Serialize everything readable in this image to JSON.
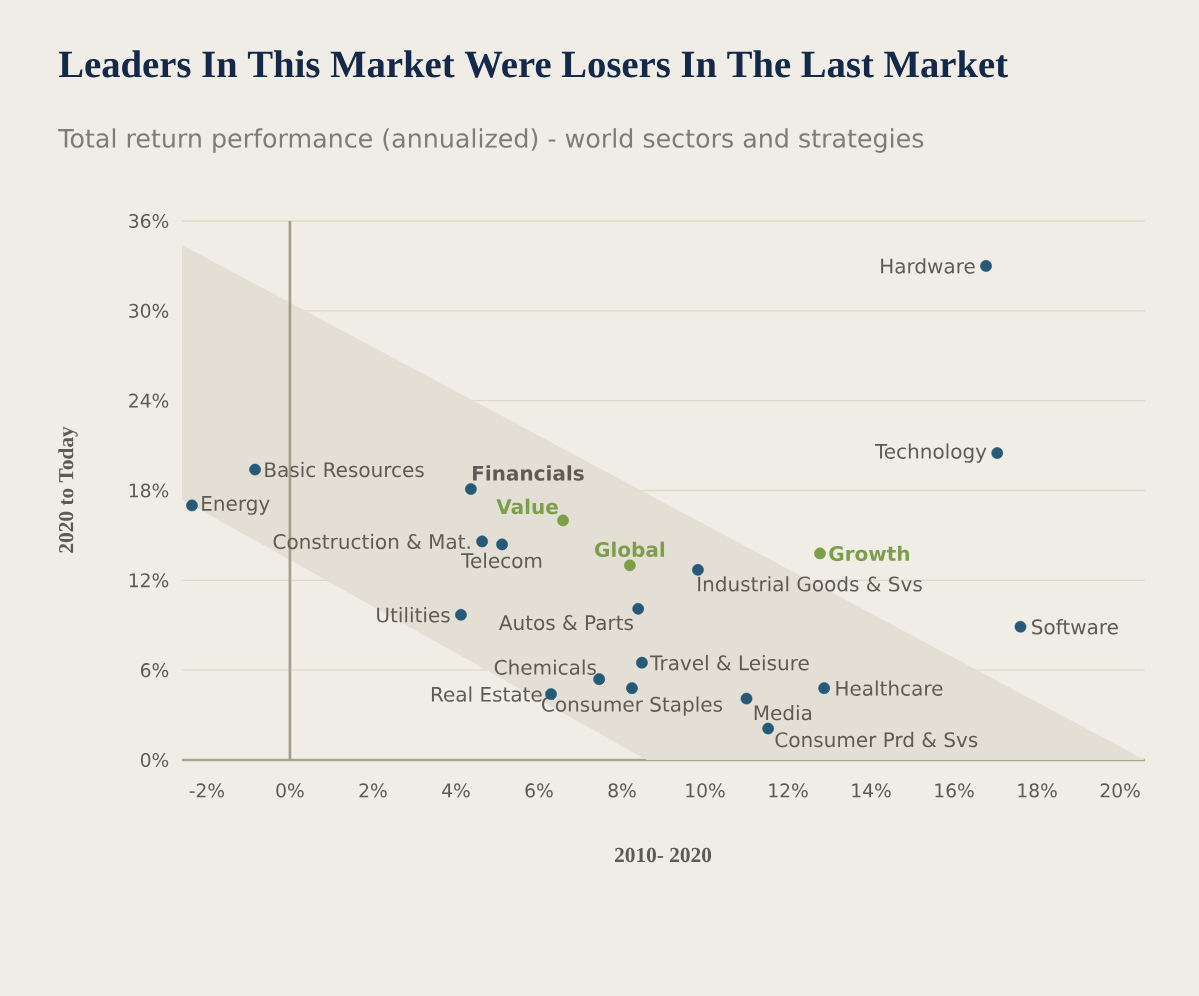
{
  "chart_data": {
    "type": "scatter",
    "title": "Leaders In This Market Were Losers In The Last Market",
    "subtitle": "Total return performance (annualized) - world sectors and strategies",
    "xlabel": "2010- 2020",
    "ylabel": "2020 to Today",
    "series": [
      {
        "x": [
          16.77,
          17.04,
          17.6,
          12.87,
          11.52,
          11.0,
          12.77,
          9.83,
          8.19,
          6.58,
          8.39,
          8.48,
          8.24,
          7.45,
          6.29,
          5.11,
          4.63,
          4.36,
          4.12,
          -0.84,
          -2.36
        ],
        "values": [
          33.0,
          20.5,
          8.9,
          4.8,
          2.1,
          4.1,
          13.8,
          12.7,
          13.0,
          16.0,
          10.1,
          6.5,
          4.8,
          5.4,
          4.4,
          14.4,
          14.6,
          18.1,
          9.7,
          19.4,
          17.0
        ],
        "colors": [
          "#265a78",
          "#265a78",
          "#265a78",
          "#265a78",
          "#265a78",
          "#265a78",
          "#7d9e4a",
          "#265a78",
          "#7d9e4a",
          "#7d9e4a",
          "#265a78",
          "#265a78",
          "#265a78",
          "#265a78",
          "#265a78",
          "#265a78",
          "#265a78",
          "#265a78",
          "#265a78",
          "#265a78",
          "#265a78"
        ]
      }
    ],
    "annotations": [
      {
        "text": "Hardware",
        "x": 16.77,
        "y": 33.0
      },
      {
        "text": "Technology",
        "x": 17.04,
        "y": 20.5
      },
      {
        "text": "Software",
        "x": 17.6,
        "y": 8.9
      },
      {
        "text": "Healthcare",
        "x": 12.87,
        "y": 4.8
      },
      {
        "text": "Consumer Prd & Svs",
        "x": 11.52,
        "y": 2.1
      },
      {
        "text": "Media",
        "x": 11.0,
        "y": 4.1
      },
      {
        "text": "**Growth**",
        "x": 12.77,
        "y": 13.8
      },
      {
        "text": "Industrial Goods & Svs",
        "x": 9.83,
        "y": 12.7
      },
      {
        "text": "**Global**",
        "x": 8.19,
        "y": 13.0
      },
      {
        "text": "**Value**",
        "x": 6.58,
        "y": 16.0
      },
      {
        "text": "Autos & Parts",
        "x": 8.39,
        "y": 10.1
      },
      {
        "text": "Travel & Leisure",
        "x": 8.48,
        "y": 6.5
      },
      {
        "text": "Consumer Staples",
        "x": 8.24,
        "y": 4.8
      },
      {
        "text": "Chemicals",
        "x": 7.45,
        "y": 5.4
      },
      {
        "text": "Real Estate",
        "x": 6.29,
        "y": 4.4
      },
      {
        "text": "Telecom",
        "x": 5.11,
        "y": 14.4
      },
      {
        "text": "Construction & Mat.",
        "x": 4.63,
        "y": 14.6
      },
      {
        "text": "**Financials**",
        "x": 4.36,
        "y": 18.1
      },
      {
        "text": "Utilities",
        "x": 4.12,
        "y": 9.7
      },
      {
        "text": "Basic Resources",
        "x": -0.84,
        "y": 19.4
      },
      {
        "text": "Energy",
        "x": -2.36,
        "y": 17.0
      }
    ],
    "xlim": [
      -2.6,
      20.6
    ],
    "ylim": [
      0,
      36
    ],
    "xticks": [
      {
        "value": -2,
        "label": "-2%"
      },
      {
        "value": 0,
        "label": "0%"
      },
      {
        "value": 2,
        "label": "2%"
      },
      {
        "value": 4,
        "label": "4%"
      },
      {
        "value": 6,
        "label": "6%"
      },
      {
        "value": 8,
        "label": "8%"
      },
      {
        "value": 10,
        "label": "10%"
      },
      {
        "value": 12,
        "label": "12%"
      },
      {
        "value": 14,
        "label": "14%"
      },
      {
        "value": 16,
        "label": "16%"
      },
      {
        "value": 18,
        "label": "18%"
      },
      {
        "value": 20,
        "label": "20%"
      }
    ],
    "yticks": [
      {
        "value": 0,
        "label": "0%"
      },
      {
        "value": 6,
        "label": "6%"
      },
      {
        "value": 12,
        "label": "12%"
      },
      {
        "value": 18,
        "label": "18%"
      },
      {
        "value": 24,
        "label": "24%"
      },
      {
        "value": 30,
        "label": "30%"
      },
      {
        "value": 36,
        "label": "36%"
      }
    ],
    "ref_lines": [
      {
        "axis": "x",
        "value": 0,
        "color": "#a39d8c"
      }
    ],
    "grid": "y",
    "marker": "circle"
  }
}
